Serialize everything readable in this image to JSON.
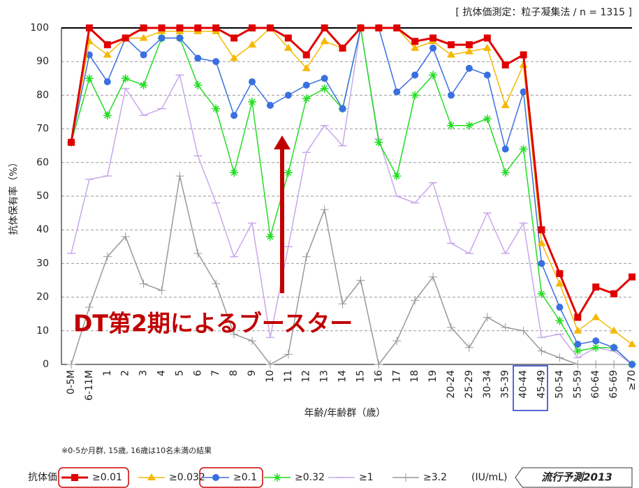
{
  "chart_data": {
    "type": "line",
    "note_top": "[ 抗体価測定：粒子凝集法  / n = 1315 ]",
    "y_label": "抗体保有率（%）",
    "x_label": "年齢/年齢群（歳）",
    "footnote": "※0-5か月群, 15歳, 16歳は10名未満の結果",
    "annotation": "DT第2期によるブースター",
    "legend_title": "抗体価",
    "legend_unit": "(IU/mL)",
    "badge": "流行予測2013",
    "categories": [
      "0-5M",
      "6-11M",
      "1",
      "2",
      "3",
      "4",
      "5",
      "6",
      "7",
      "8",
      "9",
      "10",
      "11",
      "12",
      "13",
      "14",
      "15",
      "16",
      "17",
      "18",
      "19",
      "20-24",
      "25-29",
      "30-34",
      "35-39",
      "40-44",
      "45-49",
      "50-54",
      "55-59",
      "60-64",
      "65-69",
      "≥70"
    ],
    "ylim": [
      0,
      100
    ],
    "yticks": [
      0,
      10,
      20,
      30,
      40,
      50,
      60,
      70,
      80,
      90,
      100
    ],
    "grid": true,
    "series": [
      {
        "name": "≥0.01",
        "color": "#e00000",
        "marker": "square",
        "values": [
          66,
          100,
          95,
          97,
          100,
          100,
          100,
          100,
          100,
          97,
          100,
          100,
          97,
          92,
          100,
          94,
          100,
          100,
          100,
          96,
          97,
          95,
          95,
          97,
          89,
          92,
          40,
          27,
          14,
          23,
          21,
          26
        ]
      },
      {
        "name": "≥0.032",
        "color": "#f5b800",
        "marker": "triangle",
        "values": [
          66,
          96,
          92,
          97,
          97,
          99,
          99,
          99,
          99,
          91,
          95,
          100,
          94,
          88,
          96,
          94,
          100,
          100,
          100,
          94,
          96,
          92,
          93,
          94,
          77,
          89,
          36,
          24,
          10,
          14,
          10,
          6
        ]
      },
      {
        "name": "≥0.1",
        "color": "#3a6fe0",
        "marker": "circle",
        "values": [
          66,
          92,
          84,
          97,
          92,
          97,
          97,
          91,
          90,
          74,
          84,
          77,
          80,
          83,
          85,
          76,
          100,
          100,
          81,
          86,
          94,
          80,
          88,
          86,
          64,
          81,
          30,
          17,
          6,
          7,
          5,
          0
        ]
      },
      {
        "name": "≥0.32",
        "color": "#22dd22",
        "marker": "star",
        "values": [
          66,
          85,
          74,
          85,
          83,
          97,
          97,
          83,
          76,
          57,
          78,
          38,
          57,
          79,
          82,
          76,
          100,
          66,
          56,
          80,
          86,
          71,
          71,
          73,
          57,
          64,
          21,
          13,
          4,
          5,
          5,
          0
        ]
      },
      {
        "name": "≥1",
        "color": "#c8a8ec",
        "marker": "dash",
        "values": [
          33,
          55,
          56,
          82,
          74,
          76,
          86,
          62,
          48,
          32,
          42,
          8,
          35,
          63,
          71,
          65,
          100,
          67,
          50,
          48,
          54,
          36,
          33,
          45,
          33,
          42,
          8,
          9,
          2,
          5,
          4,
          0
        ]
      },
      {
        "name": "≥3.2",
        "color": "#999999",
        "marker": "plus",
        "values": [
          0,
          17,
          32,
          38,
          24,
          22,
          56,
          33,
          24,
          9,
          7,
          0,
          3,
          32,
          46,
          18,
          25,
          0,
          7,
          19,
          26,
          11,
          5,
          14,
          11,
          10,
          4,
          2,
          0,
          0,
          0,
          0
        ]
      }
    ]
  }
}
